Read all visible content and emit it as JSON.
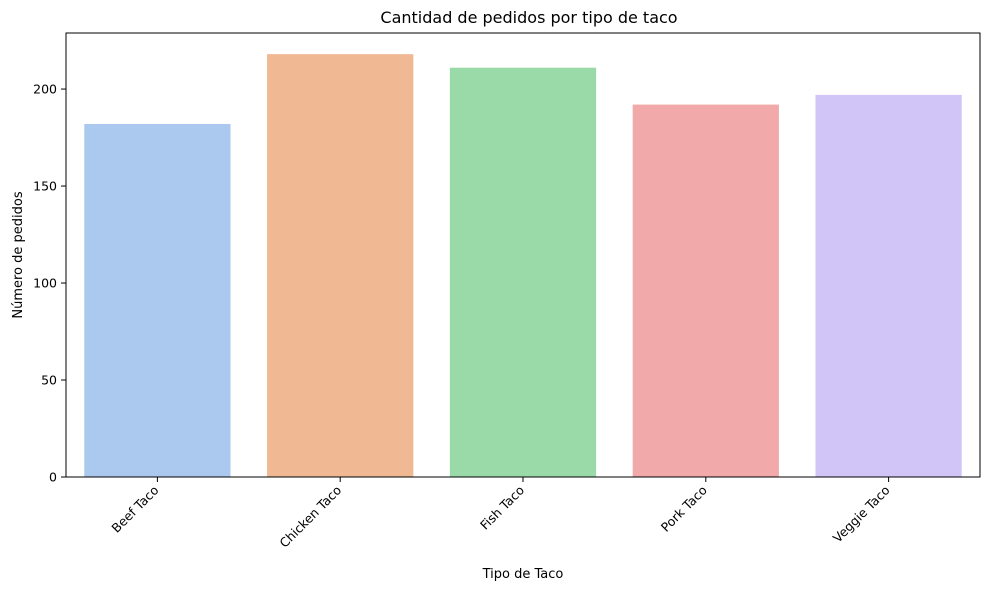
{
  "chart_data": {
    "type": "bar",
    "title": "Cantidad de pedidos por tipo de taco",
    "xlabel": "Tipo de Taco",
    "ylabel": "Número de pedidos",
    "categories": [
      "Beef Taco",
      "Chicken Taco",
      "Fish Taco",
      "Pork Taco",
      "Veggie Taco"
    ],
    "values": [
      182,
      218,
      211,
      192,
      197
    ],
    "colors": [
      "#abc9ee",
      "#f0b893",
      "#9adaa8",
      "#f1aaa9",
      "#d1c5f8"
    ],
    "yticks": [
      0,
      50,
      100,
      150,
      200
    ],
    "ylim": [
      0,
      228.9
    ],
    "grid": false,
    "legend": false
  }
}
